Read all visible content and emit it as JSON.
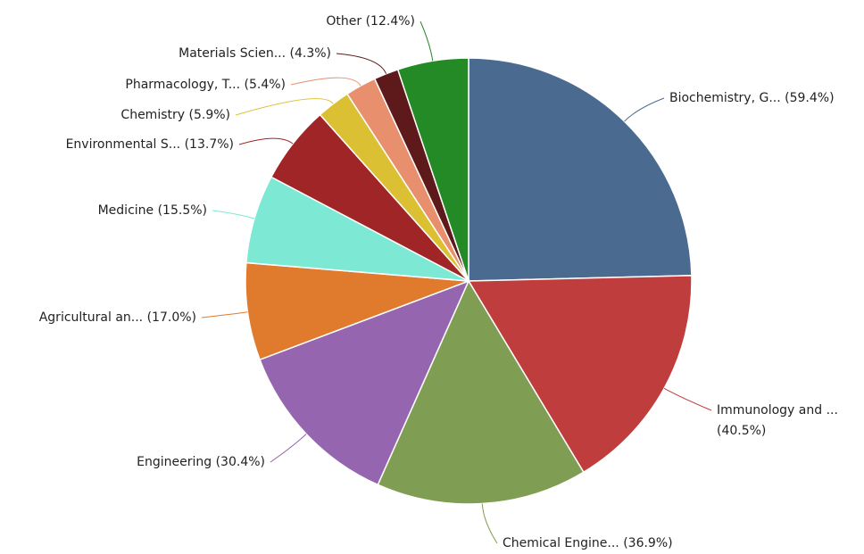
{
  "chart_data": {
    "type": "pie",
    "categories": [
      "Biochemistry, G...",
      "Immunology and ...",
      "Chemical Engine...",
      "Engineering",
      "Agricultural an...",
      "Medicine",
      "Environmental S...",
      "Chemistry",
      "Pharmacology, T...",
      "Materials Scien...",
      "Other"
    ],
    "values": [
      59.4,
      40.5,
      36.9,
      30.4,
      17.0,
      15.5,
      13.7,
      5.9,
      5.4,
      4.3,
      12.4
    ],
    "value_labels": [
      "(59.4%)",
      "(40.5%)",
      "(36.9%)",
      "(30.4%)",
      "(17.0%)",
      "(15.5%)",
      "(13.7%)",
      "(5.9%)",
      "(5.4%)",
      "(4.3%)",
      "(12.4%)"
    ],
    "colors": [
      "#4a6b8f",
      "#c03d3e",
      "#7f9d53",
      "#9565b0",
      "#e07b2d",
      "#7de8d4",
      "#a02527",
      "#dcc033",
      "#e88f6e",
      "#5e1a1b",
      "#238a25"
    ]
  }
}
